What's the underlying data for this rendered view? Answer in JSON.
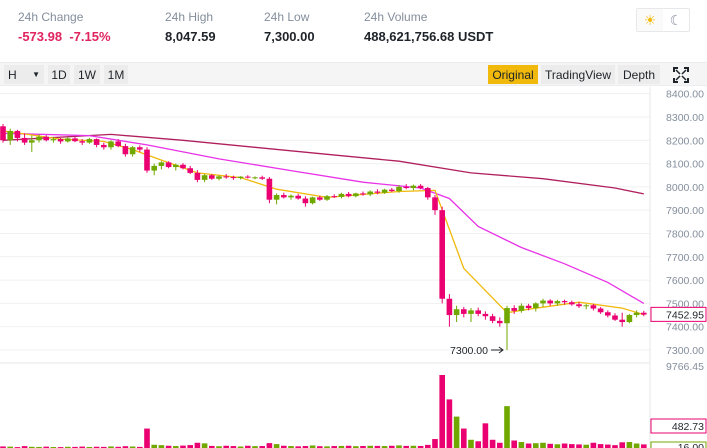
{
  "ticker": {
    "change_label": "24h Change",
    "change_value": "-573.98",
    "change_pct": "-7.15%",
    "high_label": "24h High",
    "high_value": "8,047.59",
    "low_label": "24h Low",
    "low_value": "7,300.00",
    "volume_label": "24h Volume",
    "volume_value": "488,621,756.68 USDT"
  },
  "theme": {
    "light_icon": "sun-icon",
    "dark_icon": "moon-icon"
  },
  "toolbar": {
    "interval_current": "H",
    "intervals": [
      "1D",
      "1W",
      "1M"
    ],
    "views": [
      "Original",
      "TradingView",
      "Depth"
    ],
    "active_view": "Original",
    "fullscreen_icon": "fullscreen-icon"
  },
  "colors": {
    "up": "#70a800",
    "down": "#ea0070",
    "ma_short": "#f0b90b",
    "ma_mid": "#e832e8",
    "ma_long": "#b0205e",
    "accent": "#f0b90b"
  },
  "chart_data": {
    "type": "candlestick",
    "price_axis_ticks": [
      "8400.00",
      "8300.00",
      "8200.00",
      "8100.00",
      "8000.00",
      "7900.00",
      "7800.00",
      "7700.00",
      "7600.00",
      "7500.00",
      "7400.00",
      "7300.00"
    ],
    "price_range": [
      7270,
      8420
    ],
    "current_price_label": "7452.95",
    "min_price_annotation": "7300.00",
    "volume_axis_max_label": "9766.45",
    "volume_current_label": "482.73",
    "volume_second_label": "16.00",
    "volume_max": 9766.45,
    "candles": [
      [
        8260,
        8270,
        8190,
        8200
      ],
      [
        8200,
        8250,
        8180,
        8240
      ],
      [
        8240,
        8245,
        8195,
        8210
      ],
      [
        8210,
        8230,
        8180,
        8190
      ],
      [
        8190,
        8220,
        8150,
        8200
      ],
      [
        8200,
        8225,
        8190,
        8215
      ],
      [
        8215,
        8222,
        8195,
        8200
      ],
      [
        8200,
        8215,
        8190,
        8205
      ],
      [
        8205,
        8210,
        8185,
        8195
      ],
      [
        8195,
        8212,
        8190,
        8208
      ],
      [
        8208,
        8214,
        8192,
        8196
      ],
      [
        8196,
        8205,
        8180,
        8190
      ],
      [
        8190,
        8210,
        8185,
        8205
      ],
      [
        8205,
        8208,
        8170,
        8180
      ],
      [
        8180,
        8190,
        8160,
        8170
      ],
      [
        8170,
        8200,
        8160,
        8195
      ],
      [
        8195,
        8205,
        8170,
        8175
      ],
      [
        8175,
        8185,
        8130,
        8140
      ],
      [
        8140,
        8175,
        8130,
        8170
      ],
      [
        8170,
        8178,
        8150,
        8160
      ],
      [
        8160,
        8170,
        8060,
        8070
      ],
      [
        8070,
        8100,
        8050,
        8090
      ],
      [
        8090,
        8110,
        8075,
        8105
      ],
      [
        8105,
        8110,
        8080,
        8085
      ],
      [
        8085,
        8100,
        8070,
        8095
      ],
      [
        8095,
        8102,
        8075,
        8080
      ],
      [
        8080,
        8090,
        8055,
        8060
      ],
      [
        8060,
        8072,
        8020,
        8030
      ],
      [
        8030,
        8055,
        8020,
        8050
      ],
      [
        8050,
        8055,
        8030,
        8035
      ],
      [
        8035,
        8050,
        8028,
        8045
      ],
      [
        8045,
        8055,
        8035,
        8042
      ],
      [
        8042,
        8048,
        8030,
        8038
      ],
      [
        8038,
        8046,
        8032,
        8044
      ],
      [
        8044,
        8050,
        8036,
        8040
      ],
      [
        8040,
        8045,
        8033,
        8041
      ],
      [
        8041,
        8048,
        8030,
        8035
      ],
      [
        8035,
        8042,
        7930,
        7945
      ],
      [
        7945,
        7972,
        7925,
        7965
      ],
      [
        7965,
        7975,
        7950,
        7955
      ],
      [
        7955,
        7968,
        7945,
        7962
      ],
      [
        7962,
        7970,
        7945,
        7950
      ],
      [
        7950,
        7960,
        7915,
        7930
      ],
      [
        7930,
        7958,
        7925,
        7955
      ],
      [
        7955,
        7962,
        7940,
        7945
      ],
      [
        7945,
        7965,
        7940,
        7960
      ],
      [
        7960,
        7968,
        7952,
        7957
      ],
      [
        7957,
        7975,
        7950,
        7970
      ],
      [
        7970,
        7978,
        7955,
        7960
      ],
      [
        7960,
        7975,
        7955,
        7972
      ],
      [
        7972,
        7980,
        7962,
        7968
      ],
      [
        7968,
        7985,
        7960,
        7980
      ],
      [
        7980,
        7990,
        7968,
        7975
      ],
      [
        7975,
        7992,
        7970,
        7988
      ],
      [
        7988,
        7995,
        7978,
        7982
      ],
      [
        7982,
        8008,
        7975,
        8000
      ],
      [
        8000,
        8012,
        7990,
        7995
      ],
      [
        7995,
        8010,
        7985,
        8005
      ],
      [
        8005,
        8012,
        7990,
        7995
      ],
      [
        7995,
        8000,
        7945,
        7955
      ],
      [
        7955,
        7965,
        7880,
        7900
      ],
      [
        7900,
        7915,
        7500,
        7520
      ],
      [
        7520,
        7540,
        7400,
        7450
      ],
      [
        7450,
        7490,
        7420,
        7475
      ],
      [
        7475,
        7485,
        7440,
        7455
      ],
      [
        7455,
        7480,
        7420,
        7470
      ],
      [
        7470,
        7482,
        7445,
        7455
      ],
      [
        7455,
        7466,
        7430,
        7445
      ],
      [
        7445,
        7455,
        7415,
        7425
      ],
      [
        7425,
        7440,
        7400,
        7415
      ],
      [
        7415,
        7490,
        7300,
        7480
      ],
      [
        7480,
        7492,
        7455,
        7468
      ],
      [
        7468,
        7500,
        7460,
        7490
      ],
      [
        7490,
        7498,
        7470,
        7480
      ],
      [
        7480,
        7505,
        7465,
        7500
      ],
      [
        7500,
        7520,
        7485,
        7512
      ],
      [
        7512,
        7518,
        7490,
        7500
      ],
      [
        7500,
        7516,
        7490,
        7510
      ],
      [
        7510,
        7516,
        7495,
        7505
      ],
      [
        7505,
        7512,
        7490,
        7496
      ],
      [
        7496,
        7505,
        7480,
        7488
      ],
      [
        7488,
        7497,
        7475,
        7492
      ],
      [
        7492,
        7498,
        7470,
        7478
      ],
      [
        7478,
        7484,
        7455,
        7462
      ],
      [
        7462,
        7470,
        7440,
        7448
      ],
      [
        7448,
        7458,
        7425,
        7430
      ],
      [
        7430,
        7460,
        7400,
        7420
      ],
      [
        7420,
        7455,
        7415,
        7450
      ],
      [
        7450,
        7470,
        7440,
        7460
      ],
      [
        7460,
        7468,
        7445,
        7452
      ]
    ],
    "volumes": [
      210,
      180,
      120,
      250,
      160,
      140,
      180,
      130,
      120,
      160,
      150,
      190,
      140,
      170,
      150,
      210,
      160,
      240,
      200,
      150,
      2600,
      430,
      380,
      300,
      260,
      320,
      390,
      700,
      620,
      280,
      240,
      300,
      260,
      200,
      300,
      250,
      260,
      650,
      520,
      300,
      260,
      220,
      260,
      340,
      240,
      220,
      260,
      280,
      300,
      240,
      270,
      300,
      280,
      260,
      300,
      350,
      280,
      300,
      270,
      420,
      1200,
      9766,
      6500,
      4200,
      2600,
      1100,
      900,
      3300,
      1100,
      700,
      5600,
      1000,
      800,
      600,
      640,
      700,
      560,
      500,
      600,
      520,
      480,
      440,
      700,
      520,
      460,
      380,
      760,
      800,
      600,
      483
    ],
    "ma_short": [
      [
        0,
        8240
      ],
      [
        8,
        8205
      ],
      [
        14,
        8195
      ],
      [
        18,
        8160
      ],
      [
        22,
        8115
      ],
      [
        27,
        8060
      ],
      [
        33,
        8040
      ],
      [
        38,
        7990
      ],
      [
        45,
        7955
      ],
      [
        55,
        7980
      ],
      [
        60,
        7985
      ],
      [
        64,
        7650
      ],
      [
        70,
        7460
      ],
      [
        73,
        7475
      ],
      [
        80,
        7505
      ],
      [
        86,
        7480
      ],
      [
        89,
        7452
      ]
    ],
    "ma_mid": [
      [
        0,
        8230
      ],
      [
        12,
        8220
      ],
      [
        20,
        8180
      ],
      [
        30,
        8120
      ],
      [
        40,
        8070
      ],
      [
        50,
        8020
      ],
      [
        58,
        7995
      ],
      [
        62,
        7950
      ],
      [
        66,
        7830
      ],
      [
        72,
        7740
      ],
      [
        78,
        7670
      ],
      [
        84,
        7590
      ],
      [
        89,
        7500
      ]
    ],
    "ma_long": [
      [
        0,
        8200
      ],
      [
        15,
        8225
      ],
      [
        25,
        8200
      ],
      [
        35,
        8170
      ],
      [
        45,
        8140
      ],
      [
        55,
        8110
      ],
      [
        65,
        8060
      ],
      [
        75,
        8035
      ],
      [
        85,
        7995
      ],
      [
        89,
        7970
      ]
    ]
  }
}
